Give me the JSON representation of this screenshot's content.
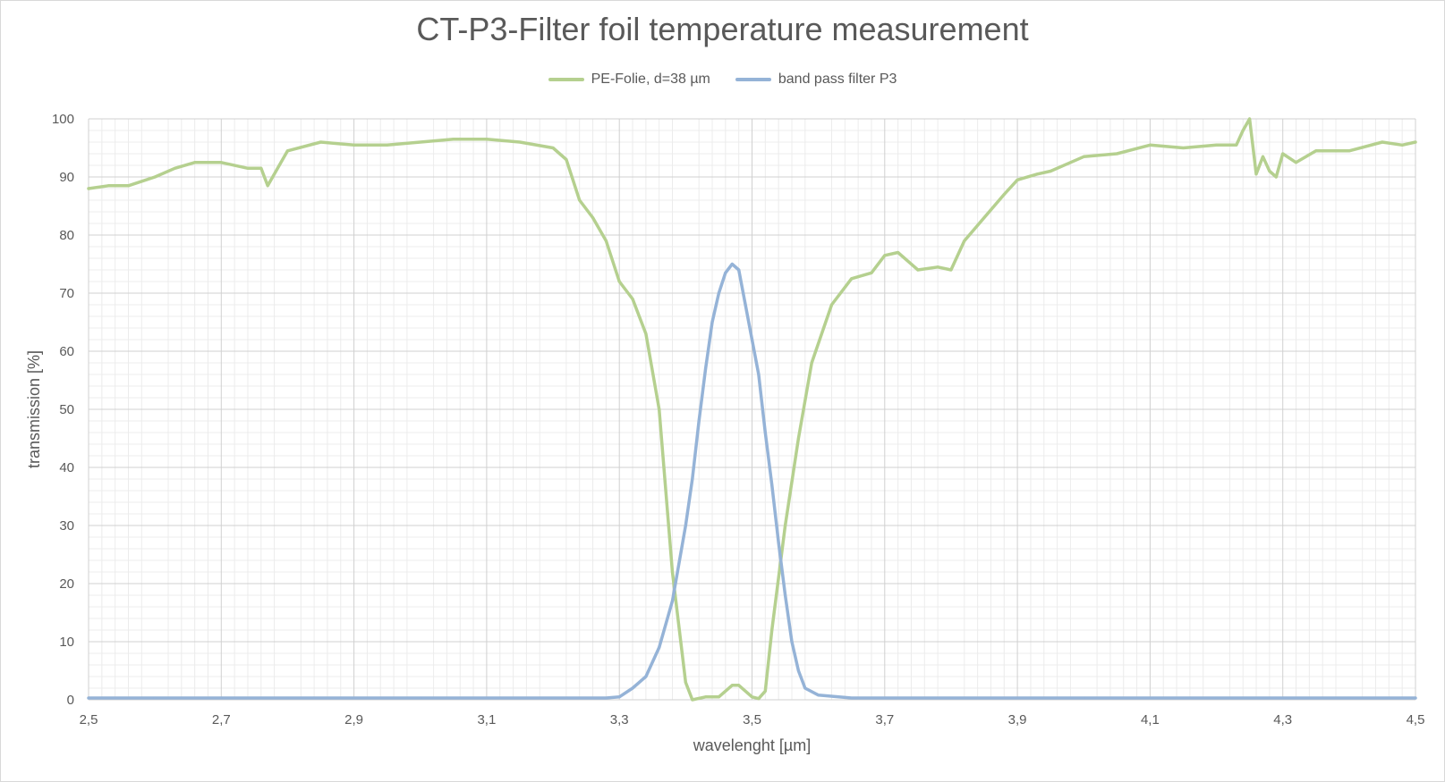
{
  "chart_data": {
    "type": "line",
    "title": "CT-P3-Filter foil temperature measurement",
    "xlabel": "wavelenght [µm]",
    "ylabel": "transmission [%]",
    "xlim": [
      2.5,
      4.5
    ],
    "ylim": [
      0,
      100
    ],
    "x_ticks": [
      "2,5",
      "2,7",
      "2,9",
      "3,1",
      "3,3",
      "3,5",
      "3,7",
      "3,9",
      "4,1",
      "4,3",
      "4,5"
    ],
    "y_ticks": [
      "0",
      "10",
      "20",
      "30",
      "40",
      "50",
      "60",
      "70",
      "80",
      "90",
      "100"
    ],
    "grid": true,
    "legend_position": "top-center",
    "series": [
      {
        "name": "PE-Folie, d=38 µm",
        "color": "#b5d08f",
        "points": [
          [
            2.5,
            88
          ],
          [
            2.53,
            88.5
          ],
          [
            2.56,
            88.5
          ],
          [
            2.6,
            90
          ],
          [
            2.63,
            91.5
          ],
          [
            2.66,
            92.5
          ],
          [
            2.7,
            92.5
          ],
          [
            2.74,
            91.5
          ],
          [
            2.76,
            91.5
          ],
          [
            2.77,
            88.5
          ],
          [
            2.8,
            94.5
          ],
          [
            2.85,
            96
          ],
          [
            2.9,
            95.5
          ],
          [
            2.95,
            95.5
          ],
          [
            3.0,
            96
          ],
          [
            3.05,
            96.5
          ],
          [
            3.1,
            96.5
          ],
          [
            3.15,
            96
          ],
          [
            3.2,
            95
          ],
          [
            3.22,
            93
          ],
          [
            3.24,
            86
          ],
          [
            3.26,
            83
          ],
          [
            3.28,
            79
          ],
          [
            3.3,
            72
          ],
          [
            3.32,
            69
          ],
          [
            3.34,
            63
          ],
          [
            3.36,
            50
          ],
          [
            3.38,
            22
          ],
          [
            3.4,
            3
          ],
          [
            3.41,
            0
          ],
          [
            3.43,
            0.5
          ],
          [
            3.45,
            0.5
          ],
          [
            3.47,
            2.5
          ],
          [
            3.48,
            2.5
          ],
          [
            3.5,
            0.5
          ],
          [
            3.51,
            0.2
          ],
          [
            3.52,
            1.5
          ],
          [
            3.53,
            12
          ],
          [
            3.55,
            30
          ],
          [
            3.57,
            45
          ],
          [
            3.59,
            58
          ],
          [
            3.62,
            68
          ],
          [
            3.65,
            72.5
          ],
          [
            3.68,
            73.5
          ],
          [
            3.7,
            76.5
          ],
          [
            3.72,
            77
          ],
          [
            3.75,
            74
          ],
          [
            3.78,
            74.5
          ],
          [
            3.8,
            74
          ],
          [
            3.82,
            79
          ],
          [
            3.85,
            83
          ],
          [
            3.88,
            87
          ],
          [
            3.9,
            89.5
          ],
          [
            3.93,
            90.5
          ],
          [
            3.95,
            91
          ],
          [
            3.98,
            92.5
          ],
          [
            4.0,
            93.5
          ],
          [
            4.05,
            94
          ],
          [
            4.1,
            95.5
          ],
          [
            4.15,
            95
          ],
          [
            4.2,
            95.5
          ],
          [
            4.23,
            95.5
          ],
          [
            4.24,
            98
          ],
          [
            4.25,
            100
          ],
          [
            4.26,
            90.5
          ],
          [
            4.27,
            93.5
          ],
          [
            4.28,
            91
          ],
          [
            4.29,
            90
          ],
          [
            4.3,
            94
          ],
          [
            4.32,
            92.5
          ],
          [
            4.35,
            94.5
          ],
          [
            4.4,
            94.5
          ],
          [
            4.45,
            96
          ],
          [
            4.48,
            95.5
          ],
          [
            4.5,
            96
          ]
        ]
      },
      {
        "name": "band pass filter P3",
        "color": "#95b3d7",
        "points": [
          [
            2.5,
            0.3
          ],
          [
            2.6,
            0.3
          ],
          [
            2.7,
            0.3
          ],
          [
            2.8,
            0.3
          ],
          [
            2.9,
            0.3
          ],
          [
            3.0,
            0.3
          ],
          [
            3.1,
            0.3
          ],
          [
            3.2,
            0.3
          ],
          [
            3.28,
            0.3
          ],
          [
            3.3,
            0.5
          ],
          [
            3.32,
            2
          ],
          [
            3.34,
            4
          ],
          [
            3.36,
            9
          ],
          [
            3.38,
            17
          ],
          [
            3.4,
            30
          ],
          [
            3.41,
            38
          ],
          [
            3.42,
            48
          ],
          [
            3.43,
            57
          ],
          [
            3.44,
            65
          ],
          [
            3.45,
            70
          ],
          [
            3.46,
            73.5
          ],
          [
            3.47,
            75
          ],
          [
            3.48,
            74
          ],
          [
            3.49,
            68
          ],
          [
            3.5,
            62
          ],
          [
            3.51,
            56
          ],
          [
            3.52,
            46
          ],
          [
            3.53,
            37
          ],
          [
            3.54,
            27
          ],
          [
            3.55,
            18
          ],
          [
            3.56,
            10
          ],
          [
            3.57,
            5
          ],
          [
            3.58,
            2
          ],
          [
            3.6,
            0.8
          ],
          [
            3.65,
            0.3
          ],
          [
            3.8,
            0.3
          ],
          [
            4.0,
            0.3
          ],
          [
            4.2,
            0.3
          ],
          [
            4.4,
            0.3
          ],
          [
            4.5,
            0.3
          ]
        ]
      }
    ]
  }
}
